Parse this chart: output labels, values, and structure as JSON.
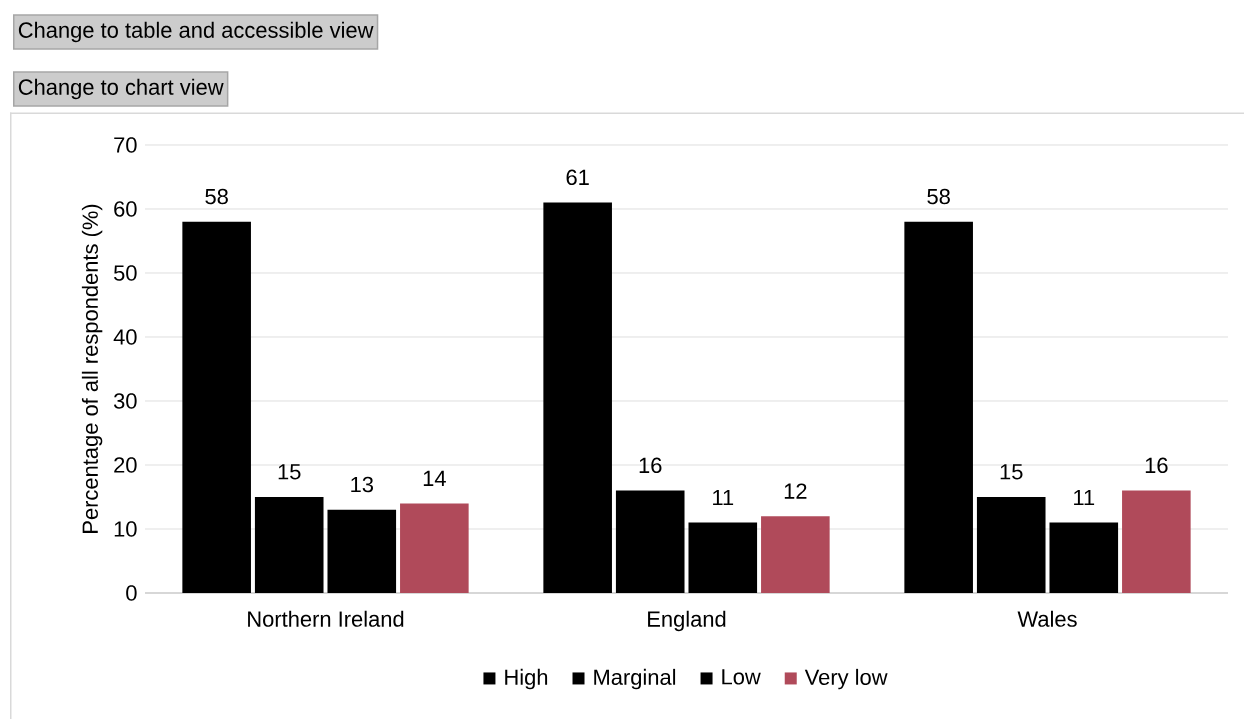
{
  "chart_data": {
    "type": "bar",
    "ylabel": "Percentage of all respondents (%)",
    "annotations": [
      "Change to table and accessible view",
      "Change to chart view"
    ],
    "categories": [
      "Northern Ireland",
      "England",
      "Wales"
    ],
    "series": [
      {
        "name": "High",
        "color": "#000000",
        "values": [
          58,
          61,
          58
        ]
      },
      {
        "name": "Marginal",
        "color": "#000000",
        "values": [
          15,
          16,
          15
        ]
      },
      {
        "name": "Low",
        "color": "#000000",
        "values": [
          13,
          11,
          11
        ]
      },
      {
        "name": "Very low",
        "color": "#b04a5a",
        "values": [
          14,
          12,
          16
        ]
      }
    ],
    "ylim": [
      0,
      70
    ],
    "yticks": [
      0,
      10,
      20,
      30,
      40,
      50,
      60,
      70
    ],
    "grid": "y",
    "legend": "bottom",
    "data_labels": true
  }
}
